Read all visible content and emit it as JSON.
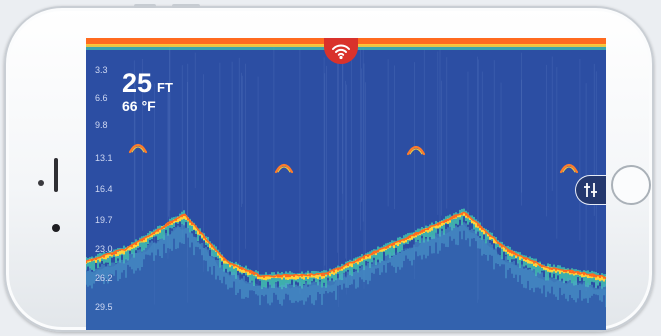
{
  "app": {
    "depth_scale": [
      "3.3",
      "6.6",
      "9.8",
      "13.1",
      "16.4",
      "19.7",
      "23.0",
      "26.2",
      "29.5"
    ],
    "current_depth": {
      "value": "25",
      "unit": "FT"
    },
    "water_temperature": {
      "value": "66",
      "unit": "°F"
    },
    "icons": {
      "connection": "wifi-icon",
      "settings": "sliders-icon"
    },
    "colors": {
      "water": "#2c4ea3",
      "bottom_strong": "#ff6a1f",
      "bottom_mid": "#ffd23a",
      "bottom_weak": "#43c7b0",
      "connection_button": "#d9322b",
      "fish_arch": "#ff7a2a"
    }
  }
}
